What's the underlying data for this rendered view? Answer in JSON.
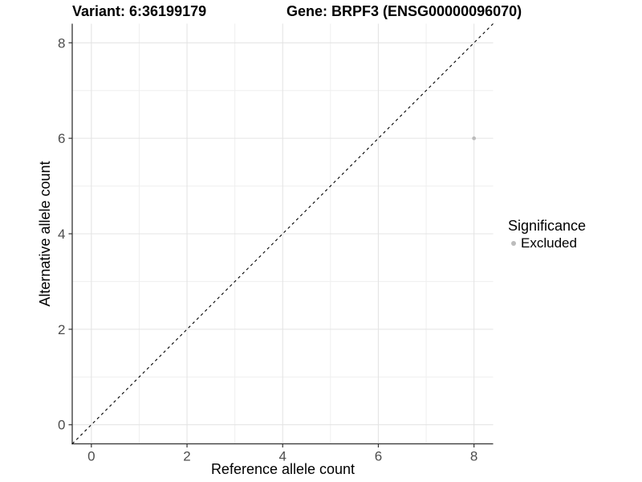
{
  "chart_data": {
    "type": "scatter",
    "title_left": "Variant: 6:36199179",
    "title_right": "Gene: BRPF3 (ENSG00000096070)",
    "xlabel": "Reference allele count",
    "ylabel": "Alternative allele count",
    "xlim": [
      -0.4,
      8.4
    ],
    "ylim": [
      -0.4,
      8.4
    ],
    "x_ticks": [
      0,
      2,
      4,
      6,
      8
    ],
    "y_ticks": [
      0,
      2,
      4,
      6,
      8
    ],
    "grid": "major+minor",
    "legend_position": "right",
    "points": [
      {
        "x": 8,
        "y": 6,
        "significance": "Excluded",
        "color": "#bcbcbc"
      }
    ],
    "reference_line": {
      "type": "identity",
      "intercept": 0,
      "slope": 1,
      "style": "dashed",
      "color": "#000000"
    },
    "legend": {
      "title": "Significance",
      "items": [
        {
          "label": "Excluded",
          "color": "#bcbcbc",
          "marker": "circle"
        }
      ]
    },
    "colors": {
      "background": "#ffffff",
      "grid_major": "#e4e4e4",
      "grid_minor": "#efefef",
      "axis": "#333333",
      "tick_text": "#4d4d4d"
    }
  }
}
